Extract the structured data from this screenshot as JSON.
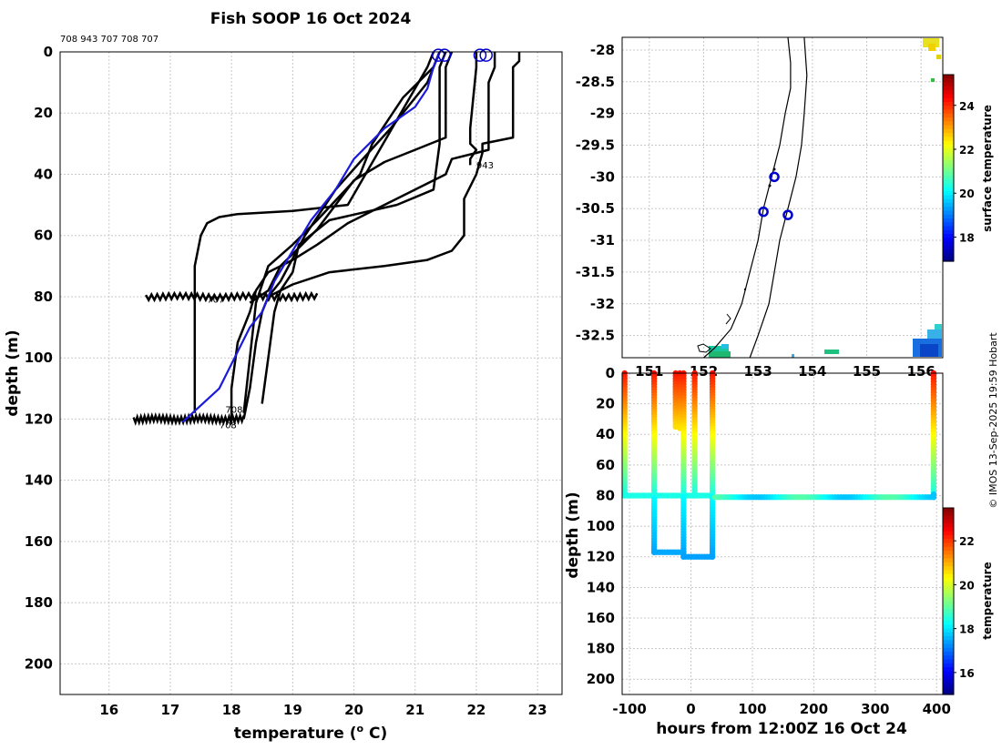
{
  "colors": {
    "profile": "#000000",
    "mean_profile": "#1a1adb",
    "marker": "#0000cc"
  },
  "chart_data": [
    {
      "type": "line",
      "id": "profiles",
      "title": "Fish SOOP 16 Oct 2024",
      "top_label": "708 943 707 708 707",
      "xlabel": "temperature (",
      "xlabel_sup": "o",
      "xlabel_end": " C)",
      "ylabel": "depth (m)",
      "xlim": [
        15.2,
        23.4
      ],
      "ylim": [
        0,
        210
      ],
      "xticks": [
        16,
        17,
        18,
        19,
        20,
        21,
        22,
        23
      ],
      "yticks": [
        0,
        20,
        40,
        60,
        80,
        100,
        120,
        140,
        160,
        180,
        200
      ],
      "series": [
        {
          "name": "p1",
          "x": [
            22.7,
            22.7,
            22.6,
            22.6,
            22.1,
            22.1,
            22.0,
            21.8,
            21.8,
            21.6,
            21.2,
            20.5,
            19.6,
            19.3,
            19.0,
            18.6,
            18.5,
            18.4,
            18.3,
            18.2
          ],
          "y": [
            0,
            3,
            5,
            28,
            30,
            33,
            40,
            48,
            60,
            65,
            68,
            70,
            72,
            74,
            76,
            80,
            85,
            95,
            110,
            120
          ]
        },
        {
          "name": "p2",
          "x": [
            22.3,
            22.3,
            22.2,
            22.2,
            21.6,
            21.5,
            20.8,
            20.3,
            19.9,
            19.4,
            19.0,
            18.6,
            18.4,
            18.3,
            18.1,
            18.0,
            18.0
          ],
          "y": [
            0,
            5,
            10,
            32,
            35,
            40,
            47,
            52,
            56,
            63,
            68,
            72,
            78,
            85,
            95,
            110,
            120
          ]
        },
        {
          "name": "p3",
          "x": [
            21.5,
            21.4,
            21.4,
            21.4,
            21.3,
            20.7,
            19.6,
            19.1,
            19.0,
            18.8,
            18.7,
            18.6,
            18.5
          ],
          "y": [
            0,
            5,
            20,
            30,
            45,
            50,
            55,
            63,
            72,
            78,
            85,
            100,
            115
          ]
        },
        {
          "name": "p4",
          "x": [
            21.6,
            21.5,
            21.5,
            21.0,
            20.5,
            20.0,
            19.7,
            19.4,
            19.1,
            18.8,
            18.6,
            18.3
          ],
          "y": [
            0,
            5,
            28,
            32,
            36,
            42,
            50,
            58,
            64,
            70,
            78,
            82
          ]
        },
        {
          "name": "p5",
          "x": [
            21.4,
            21.3,
            20.8,
            20.3,
            20.1,
            19.4,
            19.0,
            18.6,
            18.4,
            18.3,
            18.2
          ],
          "y": [
            0,
            5,
            15,
            30,
            40,
            55,
            63,
            70,
            82,
            100,
            118
          ]
        },
        {
          "name": "p6",
          "x": [
            21.4,
            21.3,
            21.2,
            20.6,
            20.1,
            19.7,
            19.2,
            18.8,
            18.6
          ],
          "y": [
            0,
            5,
            10,
            25,
            36,
            45,
            60,
            75,
            80
          ]
        },
        {
          "name": "p7",
          "x": [
            21.3,
            21.2,
            19.9,
            19.0,
            18.1,
            17.8,
            17.6,
            17.5,
            17.4,
            17.4,
            17.4
          ],
          "y": [
            0,
            5,
            50,
            52,
            53,
            54,
            56,
            60,
            70,
            100,
            118
          ]
        },
        {
          "name": "p8",
          "x": [
            22.0,
            22.0,
            21.9,
            21.9,
            22.0,
            21.9,
            21.9
          ],
          "y": [
            0,
            5,
            25,
            30,
            32,
            35,
            37
          ]
        }
      ],
      "mean_profile": {
        "name": "mean",
        "x": [
          21.4,
          21.3,
          21.2,
          21.0,
          20.5,
          20.0,
          19.7,
          19.3,
          19.0,
          18.7,
          18.5,
          18.3,
          17.8,
          17.2
        ],
        "y": [
          0,
          5,
          12,
          18,
          25,
          35,
          45,
          55,
          65,
          75,
          85,
          90,
          110,
          121
        ]
      },
      "noise_bands": [
        {
          "x1": 16.6,
          "x2": 19.4,
          "y": 80
        },
        {
          "x1": 16.4,
          "x2": 18.2,
          "y": 120
        }
      ],
      "surface_markers": [
        {
          "x": 21.38,
          "y": 0.5
        },
        {
          "x": 21.48,
          "y": 0.5
        },
        {
          "x": 22.06,
          "y": 0.5
        },
        {
          "x": 22.16,
          "y": 0.5
        }
      ],
      "annotations": [
        {
          "text": "943",
          "x": 22.0,
          "y": 38
        },
        {
          "text": "707",
          "x": 17.6,
          "y": 82
        },
        {
          "text": "708",
          "x": 17.9,
          "y": 118
        },
        {
          "text": "708",
          "x": 17.8,
          "y": 123
        }
      ]
    },
    {
      "type": "map",
      "id": "map",
      "yticks": [
        -28,
        -28.5,
        -29,
        -29.5,
        -30,
        -30.5,
        -31,
        -31.5,
        -32,
        -32.5
      ],
      "xticks": [
        151,
        152,
        153,
        154,
        155,
        156
      ],
      "xlim": [
        150.5,
        156.4
      ],
      "ylim": [
        -32.85,
        -27.8
      ],
      "stations": [
        {
          "lon": 153.3,
          "lat": -30.0
        },
        {
          "lon": 153.1,
          "lat": -30.55
        },
        {
          "lon": 153.55,
          "lat": -30.6
        }
      ],
      "coastline": [
        [
          153.55,
          -27.8
        ],
        [
          153.6,
          -28.2
        ],
        [
          153.6,
          -28.6
        ],
        [
          153.5,
          -29.0
        ],
        [
          153.4,
          -29.5
        ],
        [
          153.25,
          -30.0
        ],
        [
          153.1,
          -30.5
        ],
        [
          153.0,
          -31.0
        ],
        [
          152.85,
          -31.5
        ],
        [
          152.7,
          -32.0
        ],
        [
          152.5,
          -32.4
        ],
        [
          152.2,
          -32.7
        ],
        [
          152.0,
          -32.85
        ]
      ],
      "shelf_edge": [
        [
          153.85,
          -27.8
        ],
        [
          153.9,
          -28.4
        ],
        [
          153.85,
          -29.0
        ],
        [
          153.8,
          -29.5
        ],
        [
          153.7,
          -30.0
        ],
        [
          153.55,
          -30.5
        ],
        [
          153.4,
          -31.0
        ],
        [
          153.3,
          -31.5
        ],
        [
          153.2,
          -32.0
        ],
        [
          153.0,
          -32.5
        ],
        [
          152.85,
          -32.85
        ]
      ],
      "colorbar": {
        "label": "surface temperature",
        "ticks": [
          18,
          20,
          22,
          24
        ],
        "min": 16.9,
        "max": 25.4
      }
    },
    {
      "type": "scatter",
      "id": "timeseries",
      "xlabel": "hours from 12:00Z 16 Oct 24",
      "ylabel": "depth (m)",
      "xlim": [
        -112,
        410
      ],
      "ylim": [
        0,
        210
      ],
      "xticks": [
        -100,
        0,
        100,
        200,
        300,
        400
      ],
      "yticks": [
        0,
        20,
        40,
        60,
        80,
        100,
        120,
        140,
        160,
        180,
        200
      ],
      "segments": [
        {
          "x": [
            -108,
            -108
          ],
          "y": [
            0,
            80
          ]
        },
        {
          "x": [
            -60,
            -60
          ],
          "y": [
            0,
            80
          ]
        },
        {
          "x": [
            -108,
            30
          ],
          "y": [
            80,
            80
          ]
        },
        {
          "x": [
            -60,
            -60
          ],
          "y": [
            80,
            117
          ]
        },
        {
          "x": [
            -60,
            -12
          ],
          "y": [
            117,
            117
          ]
        },
        {
          "x": [
            -25,
            -25
          ],
          "y": [
            0,
            35
          ]
        },
        {
          "x": [
            -18,
            -18
          ],
          "y": [
            0,
            36
          ]
        },
        {
          "x": [
            -12,
            -12
          ],
          "y": [
            0,
            120
          ]
        },
        {
          "x": [
            -12,
            35
          ],
          "y": [
            120,
            120
          ]
        },
        {
          "x": 6,
          "y": [
            0,
            80
          ]
        },
        {
          "x": [
            35,
            35
          ],
          "y": [
            0,
            120
          ]
        },
        {
          "x": [
            35,
            395
          ],
          "y": [
            81,
            81
          ]
        },
        {
          "x": [
            395,
            395
          ],
          "y": [
            0,
            81
          ]
        }
      ],
      "colorbar": {
        "label": "temperature",
        "ticks": [
          16,
          18,
          20,
          22
        ],
        "min": 15.0,
        "max": 23.5
      }
    }
  ],
  "footer": {
    "credit": "© IMOS 13-Sep-2025 19:59 Hobart"
  }
}
